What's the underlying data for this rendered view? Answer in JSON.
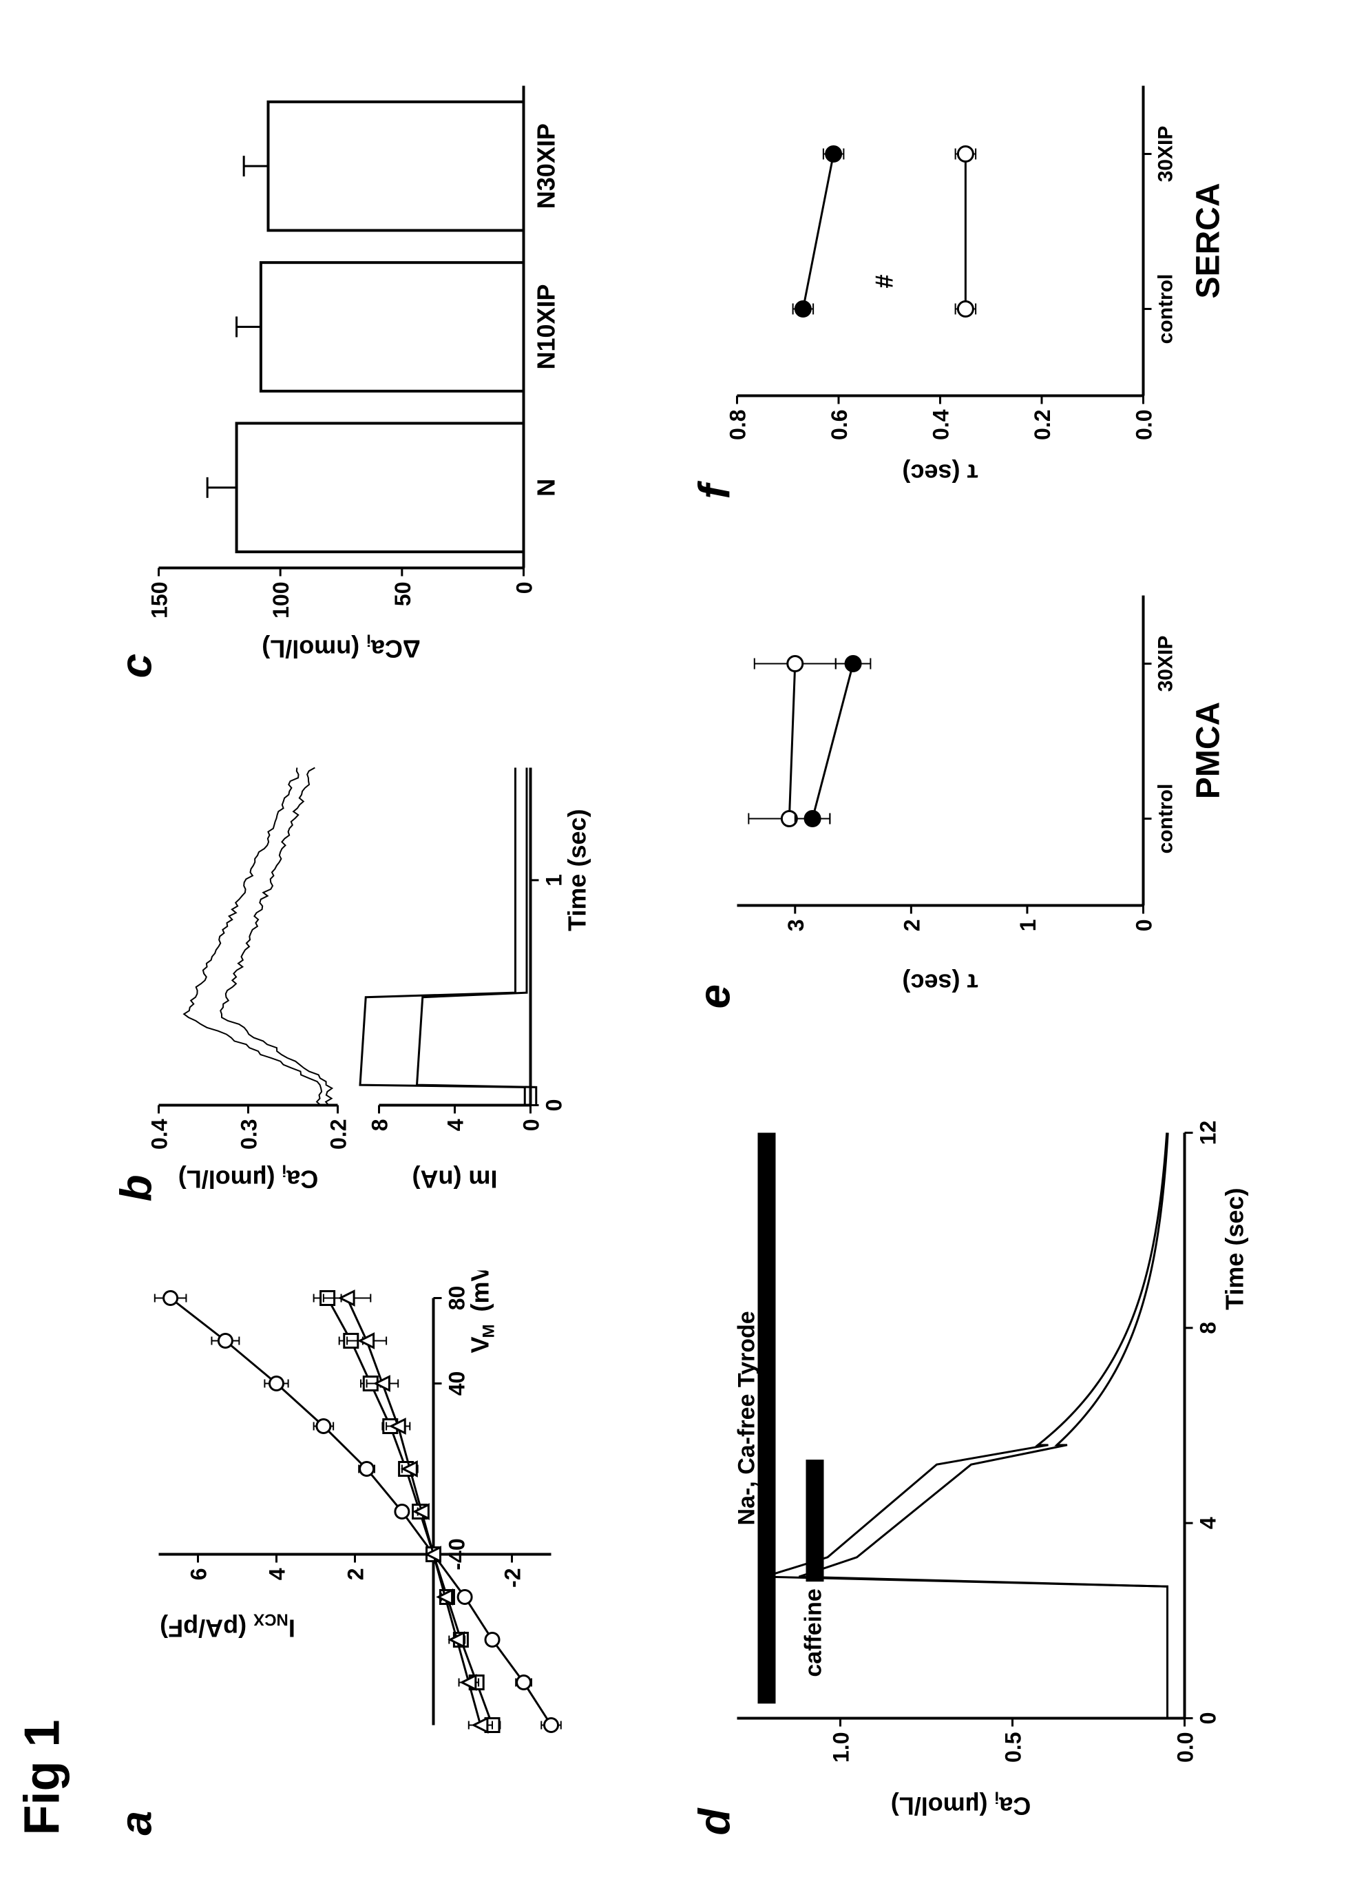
{
  "figure_title": "Fig 1",
  "background_color": "#ffffff",
  "line_color": "#000000",
  "panel_a": {
    "label": "a",
    "type": "line",
    "xlabel": "V_M (mV)",
    "ylabel": "I_NCX (pA/pF)",
    "xlim": [
      -120,
      80
    ],
    "ylim": [
      -3,
      7
    ],
    "xticks": [
      -40,
      40,
      80
    ],
    "yticks": [
      -2,
      2,
      4,
      6
    ],
    "series": [
      {
        "marker": "circle-open",
        "x": [
          -120,
          -100,
          -80,
          -60,
          -40,
          -20,
          0,
          20,
          40,
          60,
          80
        ],
        "y": [
          -3.0,
          -2.3,
          -1.5,
          -0.8,
          0,
          0.8,
          1.7,
          2.8,
          4.0,
          5.3,
          6.7
        ],
        "err": [
          0.25,
          0.2,
          0.15,
          0.1,
          0,
          0.15,
          0.2,
          0.25,
          0.3,
          0.35,
          0.4
        ]
      },
      {
        "marker": "square-open",
        "x": [
          -120,
          -100,
          -80,
          -60,
          -40,
          -20,
          0,
          20,
          40,
          60,
          80
        ],
        "y": [
          -1.5,
          -1.1,
          -0.7,
          -0.35,
          0,
          0.35,
          0.7,
          1.1,
          1.6,
          2.1,
          2.7
        ],
        "err": [
          0.2,
          0.15,
          0.1,
          0.05,
          0,
          0.1,
          0.15,
          0.2,
          0.25,
          0.3,
          0.35
        ]
      },
      {
        "marker": "triangle-open",
        "x": [
          -120,
          -100,
          -80,
          -60,
          -40,
          -20,
          0,
          20,
          40,
          60,
          80
        ],
        "y": [
          -1.2,
          -0.9,
          -0.6,
          -0.3,
          0,
          0.3,
          0.6,
          0.9,
          1.3,
          1.7,
          2.2
        ],
        "err": [
          0.3,
          0.25,
          0.2,
          0.1,
          0,
          0.1,
          0.2,
          0.3,
          0.4,
          0.5,
          0.6
        ]
      }
    ]
  },
  "panel_b": {
    "label": "b",
    "type": "line",
    "top": {
      "ylabel": "Ca_i (µmol/L)",
      "ylim": [
        0.2,
        0.4
      ],
      "yticks": [
        0.2,
        0.3,
        0.4
      ],
      "traces": 2
    },
    "bottom": {
      "ylabel": "Im (nA)",
      "xlabel": "Time (sec)",
      "ylim": [
        0,
        8
      ],
      "yticks": [
        0,
        4,
        8
      ],
      "xlim": [
        0,
        1.5
      ],
      "xticks": [
        0,
        1
      ]
    }
  },
  "panel_c": {
    "label": "c",
    "type": "bar",
    "ylabel": "ΔCa_i (nmol/L)",
    "ylim": [
      0,
      150
    ],
    "yticks": [
      0,
      50,
      100,
      150
    ],
    "categories": [
      "N",
      "N10XIP",
      "N30XIP"
    ],
    "values": [
      118,
      108,
      105
    ],
    "errors": [
      12,
      10,
      10
    ],
    "bar_fill": "#ffffff",
    "bar_stroke": "#000000",
    "bar_width": 0.8
  },
  "panel_d": {
    "label": "d",
    "type": "line",
    "ylabel": "Ca_i (µmol/L)",
    "xlabel": "Time (sec)",
    "ylim": [
      0.0,
      1.3
    ],
    "yticks": [
      0.0,
      0.5,
      1.0
    ],
    "xlim": [
      0,
      12
    ],
    "xticks": [
      0,
      4,
      8,
      12
    ],
    "bar1_label": "Na-, Ca-free Tyrode",
    "bar1_start": 0.3,
    "bar1_end": 12,
    "bar2_label": "caffeine",
    "bar2_start": 2.8,
    "bar2_end": 5.3,
    "traces": 2
  },
  "panel_e": {
    "label": "e",
    "type": "line",
    "title": "PMCA",
    "ylabel": "τ (sec)",
    "ylim": [
      0,
      3.5
    ],
    "yticks": [
      0,
      1,
      2,
      3
    ],
    "categories": [
      "control",
      "30XIP"
    ],
    "series": [
      {
        "marker": "circle-open",
        "y": [
          3.05,
          3.0
        ],
        "err": [
          0.35,
          0.35
        ]
      },
      {
        "marker": "circle-filled",
        "y": [
          2.85,
          2.5
        ],
        "err": [
          0.15,
          0.15
        ]
      }
    ]
  },
  "panel_f": {
    "label": "f",
    "type": "line",
    "title": "SERCA",
    "ylabel": "τ (sec)",
    "ylim": [
      0.0,
      0.8
    ],
    "yticks": [
      0.0,
      0.2,
      0.4,
      0.6,
      0.8
    ],
    "categories": [
      "control",
      "30XIP"
    ],
    "annotation": "#",
    "series": [
      {
        "marker": "circle-filled",
        "y": [
          0.67,
          0.61
        ],
        "err": [
          0.02,
          0.02
        ]
      },
      {
        "marker": "circle-open",
        "y": [
          0.35,
          0.35
        ],
        "err": [
          0.02,
          0.02
        ]
      }
    ]
  }
}
